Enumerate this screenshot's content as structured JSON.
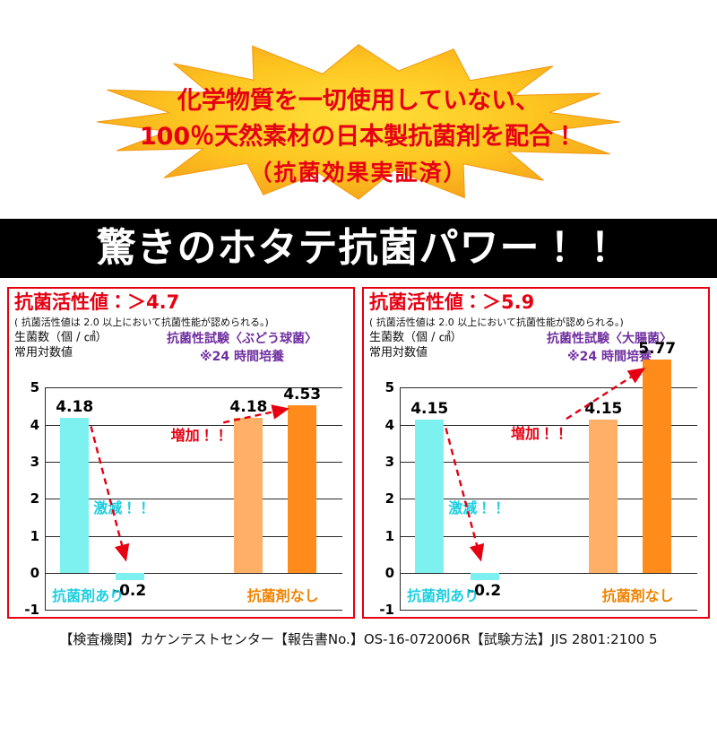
{
  "burst": {
    "line1": "化学物質を一切使用していない、",
    "line2": "100％天然素材の日本製抗菌剤を配合！",
    "line3": "（抗菌効果実証済）"
  },
  "banner": {
    "title": "驚きのホタテ抗菌パワー！！"
  },
  "colors": {
    "accent_red": "#e60012",
    "purple": "#7030a0",
    "cyan_text": "#1fcfe0",
    "cyan_bar": "#7df0f0",
    "orange_text": "#f08300",
    "orange_bar_light": "#ffb066",
    "orange_bar_dark": "#ff8c1a",
    "burst_center": "#ffdf3a",
    "burst_edge": "#f59e1a"
  },
  "chart_data": [
    {
      "type": "bar",
      "title": "抗菌活性値：＞4.7",
      "note": "( 抗菌活性値は 2.0 以上において抗菌性能が認められる。)",
      "unit_label": "生菌数（個 / ㎠）",
      "scale_label": "常用対数値",
      "test_name": "抗菌性試験〈ぶどう球菌〉",
      "test_note": "※24 時間培養",
      "ylim": [
        -1,
        5
      ],
      "ytick_step": 1,
      "grid": true,
      "bars": [
        {
          "value": 4.18,
          "label": "4.18",
          "color": "#7df0f0",
          "x": 0.1
        },
        {
          "value": -0.2,
          "label": "-0.2",
          "color": "#7df0f0",
          "x": 0.285
        },
        {
          "value": 4.18,
          "label": "4.18",
          "color": "#ffb066",
          "x": 0.685
        },
        {
          "value": 4.53,
          "label": "4.53",
          "color": "#ff8c1a",
          "x": 0.865
        }
      ],
      "groups": [
        {
          "label": "抗菌剤あり",
          "color": "#1fcfe0",
          "x": 0.145
        },
        {
          "label": "抗菌剤なし",
          "color": "#f08300",
          "x": 0.8
        }
      ],
      "annotations": [
        {
          "text": "激減！！",
          "color": "#1fcfe0",
          "x": 0.26,
          "value": 1.8
        },
        {
          "text": "増加！！",
          "color": "#e60012",
          "x": 0.52,
          "value": 3.75
        }
      ],
      "arrows": [
        {
          "x1": 0.155,
          "v1": 3.95,
          "x2": 0.272,
          "v2": 0.35
        },
        {
          "x1": 0.6,
          "v1": 4.05,
          "x2": 0.815,
          "v2": 4.42
        }
      ]
    },
    {
      "type": "bar",
      "title": "抗菌活性値：＞5.9",
      "note": "( 抗菌活性値は 2.0 以上において抗菌性能が認められる。)",
      "unit_label": "生菌数（個 / ㎠）",
      "scale_label": "常用対数値",
      "test_name": "抗菌性試験〈大腸菌〉",
      "test_note": "※24 時間培養",
      "ylim": [
        -1,
        5
      ],
      "ytick_step": 1,
      "grid": true,
      "bars": [
        {
          "value": 4.15,
          "label": "4.15",
          "color": "#7df0f0",
          "x": 0.1
        },
        {
          "value": -0.2,
          "label": "-0.2",
          "color": "#7df0f0",
          "x": 0.285
        },
        {
          "value": 4.15,
          "label": "4.15",
          "color": "#ffb066",
          "x": 0.685
        },
        {
          "value": 5.77,
          "label": "5.77",
          "color": "#ff8c1a",
          "x": 0.865
        }
      ],
      "groups": [
        {
          "label": "抗菌剤あり",
          "color": "#1fcfe0",
          "x": 0.145
        },
        {
          "label": "抗菌剤なし",
          "color": "#f08300",
          "x": 0.8
        }
      ],
      "annotations": [
        {
          "text": "激減！！",
          "color": "#1fcfe0",
          "x": 0.26,
          "value": 1.8
        },
        {
          "text": "増加！！",
          "color": "#e60012",
          "x": 0.47,
          "value": 3.8
        }
      ],
      "arrows": [
        {
          "x1": 0.155,
          "v1": 3.9,
          "x2": 0.272,
          "v2": 0.35
        },
        {
          "x1": 0.56,
          "v1": 4.15,
          "x2": 0.82,
          "v2": 5.5
        }
      ]
    }
  ],
  "footer": "【検査機関】カケンテストセンター【報告書No.】OS-16-072006R【試験方法】JIS 2801:2100 5"
}
